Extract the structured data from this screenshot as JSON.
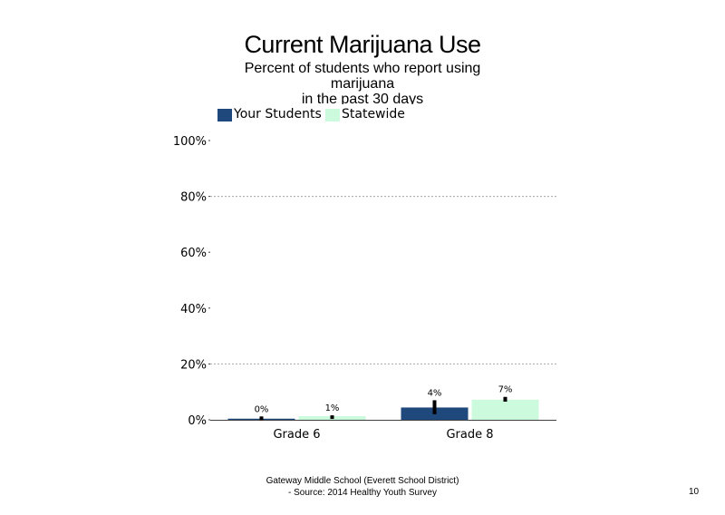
{
  "title": "Current Marijuana Use",
  "subtitle_lines": [
    "Percent of students who report using",
    "marijuana",
    "in the past 30 days"
  ],
  "legend": {
    "your_students": "Your Students",
    "statewide": "Statewide"
  },
  "footer": {
    "line1": "Gateway Middle School (Everett School District)",
    "line2": "- Source: 2014 Healthy Youth Survey"
  },
  "page_number": "10",
  "colors": {
    "your_students": "#1f497d",
    "statewide": "#ccfadc",
    "grid": "#a6a6a6",
    "axis": "#404040",
    "error_bar": "#000000"
  },
  "chart_data": {
    "type": "bar",
    "categories": [
      "Grade 6",
      "Grade 8"
    ],
    "series": [
      {
        "name": "Your Students",
        "values": [
          0.4,
          4.4
        ],
        "labels": [
          "0%",
          "4%"
        ],
        "error_low": [
          0,
          2
        ],
        "error_high": [
          1.2,
          7
        ]
      },
      {
        "name": "Statewide",
        "values": [
          1.3,
          7.2
        ],
        "labels": [
          "1%",
          "7%"
        ],
        "error_low": [
          1.0,
          6.5
        ],
        "error_high": [
          1.6,
          8.2
        ]
      }
    ],
    "ylim": [
      0,
      100
    ],
    "yticks": [
      "0%",
      "20%",
      "40%",
      "60%",
      "80%",
      "100%"
    ],
    "ytick_values": [
      0,
      20,
      40,
      60,
      80,
      100
    ],
    "gridlines": [
      20,
      80
    ],
    "xlabel": "",
    "ylabel": ""
  }
}
